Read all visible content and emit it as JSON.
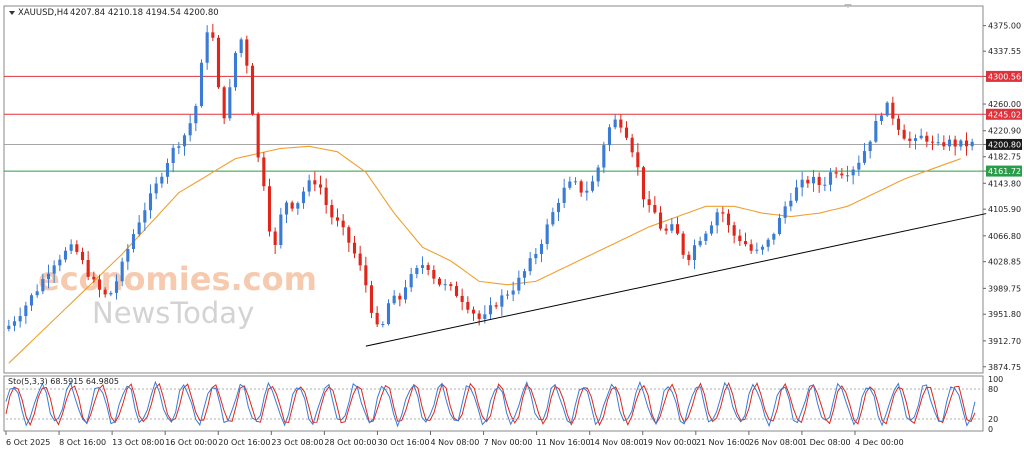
{
  "header": {
    "symbol_label": "XAUUSD,H4",
    "ohlc_label": "4207.84 4210.18 4194.54 4200.80"
  },
  "watermark": {
    "line1": "economies.com",
    "line2": "NewsToday"
  },
  "colors": {
    "bull": "#3a7bd5",
    "bear": "#e0261b",
    "ma": "#f0a030",
    "resistance": "#e0323c",
    "support": "#2a9d48",
    "trend": "#000000",
    "current": "#9a9a9a",
    "stoch_main": "#3a7bd5",
    "stoch_signal": "#e0261b"
  },
  "chart_data": [
    {
      "type": "candlestick",
      "symbol": "XAUUSD",
      "timeframe": "H4",
      "ylim": [
        3870,
        4395
      ],
      "y_ticks": [
        "4375.00",
        "4337.55",
        "4300.56",
        "4260.00",
        "4245.02",
        "4220.90",
        "4200.80",
        "4182.75",
        "4161.72",
        "4143.80",
        "4105.90",
        "4066.80",
        "4028.85",
        "3989.75",
        "3951.80",
        "3912.70",
        "3874.75"
      ],
      "x_tick_labels": [
        "6 Oct 2025",
        "8 Oct 16:00",
        "13 Oct 08:00",
        "16 Oct 00:00",
        "20 Oct 16:00",
        "23 Oct 08:00",
        "28 Oct 00:00",
        "30 Oct 16:00",
        "4 Nov 08:00",
        "7 Nov 00:00",
        "11 Nov 16:00",
        "14 Nov 08:00",
        "19 Nov 00:00",
        "21 Nov 16:00",
        "26 Nov 08:00",
        "1 Dec 08:00",
        "4 Dec 00:00"
      ],
      "price_path": [
        [
          0,
          3930
        ],
        [
          3,
          3960
        ],
        [
          6,
          3995
        ],
        [
          8,
          4025
        ],
        [
          10,
          4040
        ],
        [
          12,
          4050
        ],
        [
          14,
          4020
        ],
        [
          16,
          3990
        ],
        [
          18,
          3975
        ],
        [
          20,
          4010
        ],
        [
          22,
          4060
        ],
        [
          24,
          4100
        ],
        [
          26,
          4130
        ],
        [
          28,
          4170
        ],
        [
          30,
          4200
        ],
        [
          32,
          4220
        ],
        [
          34,
          4270
        ],
        [
          35,
          4360
        ],
        [
          36,
          4380
        ],
        [
          37,
          4330
        ],
        [
          38,
          4230
        ],
        [
          39,
          4260
        ],
        [
          40,
          4300
        ],
        [
          41,
          4370
        ],
        [
          42,
          4340
        ],
        [
          43,
          4300
        ],
        [
          44,
          4200
        ],
        [
          45,
          4160
        ],
        [
          46,
          4130
        ],
        [
          47,
          4030
        ],
        [
          48,
          4070
        ],
        [
          49,
          4120
        ],
        [
          51,
          4110
        ],
        [
          53,
          4140
        ],
        [
          55,
          4150
        ],
        [
          57,
          4100
        ],
        [
          59,
          4080
        ],
        [
          61,
          4050
        ],
        [
          63,
          4010
        ],
        [
          64,
          3980
        ],
        [
          65,
          3940
        ],
        [
          66,
          3920
        ],
        [
          67,
          3950
        ],
        [
          68,
          3985
        ],
        [
          69,
          3960
        ],
        [
          70,
          3990
        ],
        [
          72,
          4010
        ],
        [
          74,
          4030
        ],
        [
          76,
          4000
        ],
        [
          78,
          3990
        ],
        [
          80,
          3980
        ],
        [
          82,
          3960
        ],
        [
          84,
          3940
        ],
        [
          86,
          3965
        ],
        [
          88,
          3980
        ],
        [
          90,
          3995
        ],
        [
          92,
          4020
        ],
        [
          94,
          4050
        ],
        [
          96,
          4090
        ],
        [
          98,
          4130
        ],
        [
          100,
          4145
        ],
        [
          102,
          4130
        ],
        [
          104,
          4150
        ],
        [
          106,
          4220
        ],
        [
          108,
          4240
        ],
        [
          110,
          4210
        ],
        [
          112,
          4150
        ],
        [
          113,
          4100
        ],
        [
          114,
          4110
        ],
        [
          116,
          4070
        ],
        [
          118,
          4080
        ],
        [
          120,
          4030
        ],
        [
          122,
          4060
        ],
        [
          124,
          4080
        ],
        [
          126,
          4110
        ],
        [
          128,
          4070
        ],
        [
          130,
          4060
        ],
        [
          132,
          4040
        ],
        [
          134,
          4050
        ],
        [
          136,
          4080
        ],
        [
          138,
          4120
        ],
        [
          140,
          4140
        ],
        [
          142,
          4150
        ],
        [
          144,
          4140
        ],
        [
          146,
          4165
        ],
        [
          148,
          4160
        ],
        [
          150,
          4170
        ],
        [
          152,
          4200
        ],
        [
          154,
          4240
        ],
        [
          155,
          4260
        ],
        [
          156,
          4250
        ],
        [
          158,
          4220
        ],
        [
          160,
          4200
        ],
        [
          162,
          4215
        ],
        [
          164,
          4195
        ],
        [
          166,
          4205
        ],
        [
          168,
          4200
        ],
        [
          170,
          4201
        ]
      ],
      "ma_path": [
        [
          0,
          3880
        ],
        [
          10,
          3960
        ],
        [
          20,
          4040
        ],
        [
          30,
          4130
        ],
        [
          40,
          4180
        ],
        [
          48,
          4195
        ],
        [
          53,
          4198
        ],
        [
          58,
          4190
        ],
        [
          63,
          4160
        ],
        [
          68,
          4100
        ],
        [
          73,
          4050
        ],
        [
          78,
          4030
        ],
        [
          83,
          4000
        ],
        [
          88,
          3995
        ],
        [
          93,
          4000
        ],
        [
          98,
          4020
        ],
        [
          103,
          4040
        ],
        [
          108,
          4060
        ],
        [
          113,
          4080
        ],
        [
          118,
          4095
        ],
        [
          123,
          4110
        ],
        [
          128,
          4110
        ],
        [
          133,
          4100
        ],
        [
          138,
          4095
        ],
        [
          143,
          4100
        ],
        [
          148,
          4110
        ],
        [
          153,
          4130
        ],
        [
          158,
          4150
        ],
        [
          163,
          4165
        ],
        [
          168,
          4180
        ]
      ],
      "horizontal_levels": [
        {
          "label": "4300.56",
          "value": 4300.56,
          "role": "resistance"
        },
        {
          "label": "4245.02",
          "value": 4245.02,
          "role": "resistance"
        },
        {
          "label": "4200.80",
          "value": 4200.8,
          "role": "current"
        },
        {
          "label": "4161.72",
          "value": 4161.72,
          "role": "support"
        }
      ],
      "trendline": {
        "start": [
          63,
          3905
        ],
        "end": [
          170,
          4095
        ]
      }
    },
    {
      "type": "line",
      "label": "Sto(5,3,3) 68.5915 64.9805",
      "ylim": [
        0,
        100
      ],
      "y_ticks": [
        "100",
        "80",
        "20",
        "0"
      ],
      "levels": [
        80,
        20
      ],
      "stochastic": {
        "period_count": 34,
        "amplitude": 38,
        "base": 50
      }
    }
  ]
}
